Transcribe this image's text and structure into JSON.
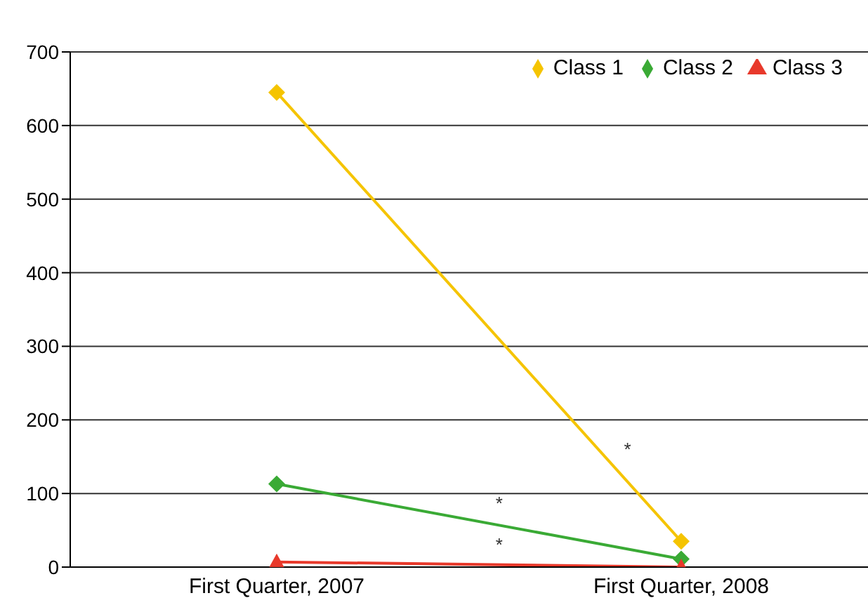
{
  "chart_data": {
    "type": "line",
    "categories": [
      "First Quarter, 2007",
      "First Quarter, 2008"
    ],
    "series": [
      {
        "name": "Class 1",
        "color": "#f5c400",
        "values": [
          645,
          35
        ],
        "marker": "diamond"
      },
      {
        "name": "Class 2",
        "color": "#3aaa35",
        "values": [
          113,
          11
        ],
        "marker": "diamond"
      },
      {
        "name": "Class 3",
        "color": "#e8392b",
        "values": [
          7,
          0
        ],
        "marker": "triangle"
      }
    ],
    "ylim": [
      0,
      700
    ],
    "yticks": [
      0,
      100,
      200,
      300,
      400,
      500,
      600,
      700
    ],
    "grid": "y",
    "legend": "top right",
    "annotations": [
      "*",
      "*",
      "*"
    ]
  }
}
